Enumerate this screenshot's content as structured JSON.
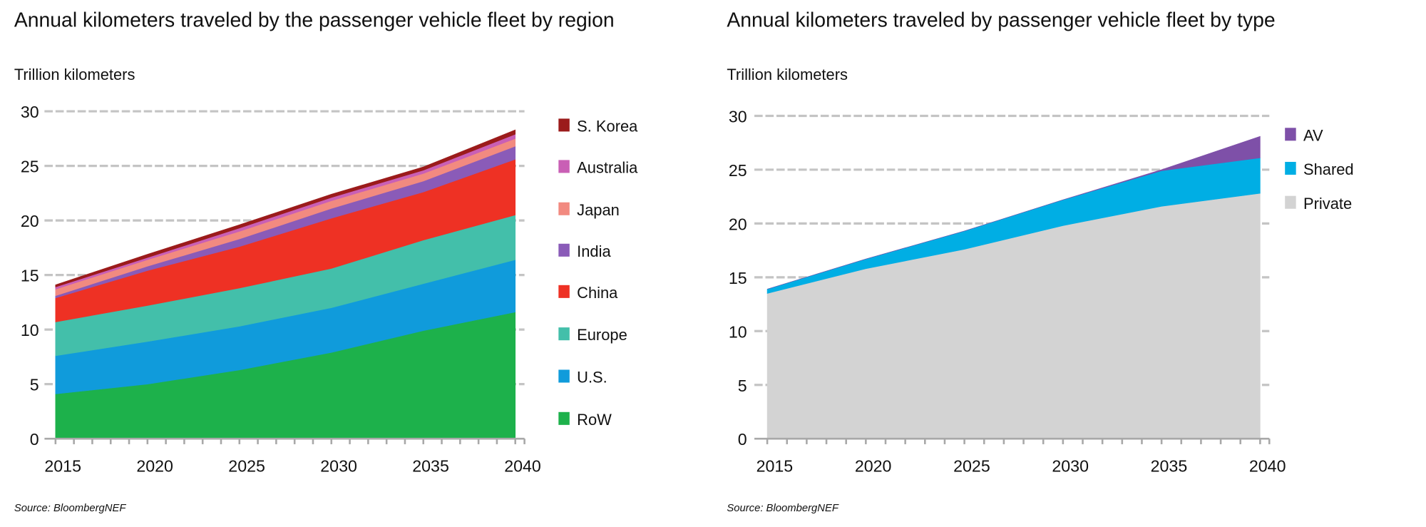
{
  "chart_data": [
    {
      "type": "area",
      "stacked": true,
      "title": "Annual kilometers traveled by the passenger vehicle fleet by region",
      "ylabel": "Trillion kilometers",
      "xlabel": "",
      "ylim": [
        0,
        30
      ],
      "yticks": [
        0,
        5,
        10,
        15,
        20,
        25,
        30
      ],
      "xticks": [
        2015,
        2020,
        2025,
        2030,
        2035,
        2040
      ],
      "x": [
        2015,
        2020,
        2025,
        2030,
        2035,
        2040
      ],
      "grid": true,
      "legend_position": "right",
      "source": "Source: BloombergNEF",
      "series": [
        {
          "name": "RoW",
          "color": "#1db14b",
          "values": [
            4.1,
            5.0,
            6.3,
            7.9,
            9.9,
            11.6
          ]
        },
        {
          "name": "U.S.",
          "color": "#109bdb",
          "values": [
            3.5,
            3.9,
            4.0,
            4.1,
            4.3,
            4.8
          ]
        },
        {
          "name": "Europe",
          "color": "#43bfaa",
          "values": [
            3.1,
            3.3,
            3.5,
            3.6,
            4.0,
            4.1
          ]
        },
        {
          "name": "China",
          "color": "#ee3124",
          "values": [
            2.2,
            3.2,
            3.8,
            4.6,
            4.4,
            5.1
          ]
        },
        {
          "name": "India",
          "color": "#8a5bb8",
          "values": [
            0.2,
            0.4,
            0.7,
            0.9,
            1.0,
            1.2
          ]
        },
        {
          "name": "Japan",
          "color": "#f28a80",
          "values": [
            0.6,
            0.6,
            0.7,
            0.7,
            0.7,
            0.7
          ]
        },
        {
          "name": "Australia",
          "color": "#c95fb5",
          "values": [
            0.2,
            0.2,
            0.3,
            0.3,
            0.3,
            0.4
          ]
        },
        {
          "name": "S. Korea",
          "color": "#9b1b1b",
          "values": [
            0.2,
            0.3,
            0.3,
            0.3,
            0.3,
            0.4
          ]
        }
      ]
    },
    {
      "type": "area",
      "stacked": true,
      "title": "Annual kilometers traveled by passenger vehicle fleet by type",
      "ylabel": "Trillion kilometers",
      "xlabel": "",
      "ylim": [
        0,
        30
      ],
      "yticks": [
        0,
        5,
        10,
        15,
        20,
        25,
        30
      ],
      "xticks": [
        2015,
        2020,
        2025,
        2030,
        2035,
        2040
      ],
      "x": [
        2015,
        2020,
        2025,
        2030,
        2035,
        2040
      ],
      "grid": true,
      "legend_position": "right",
      "source": "Source: BloombergNEF",
      "series": [
        {
          "name": "Private",
          "color": "#d3d3d3",
          "values": [
            13.5,
            15.8,
            17.6,
            19.8,
            21.6,
            22.8
          ]
        },
        {
          "name": "Shared",
          "color": "#00aee4",
          "values": [
            0.4,
            0.9,
            1.7,
            2.4,
            3.3,
            3.3
          ]
        },
        {
          "name": "AV",
          "color": "#7e50a8",
          "values": [
            0.0,
            0.0,
            0.0,
            0.0,
            0.1,
            2.0
          ]
        }
      ]
    }
  ]
}
